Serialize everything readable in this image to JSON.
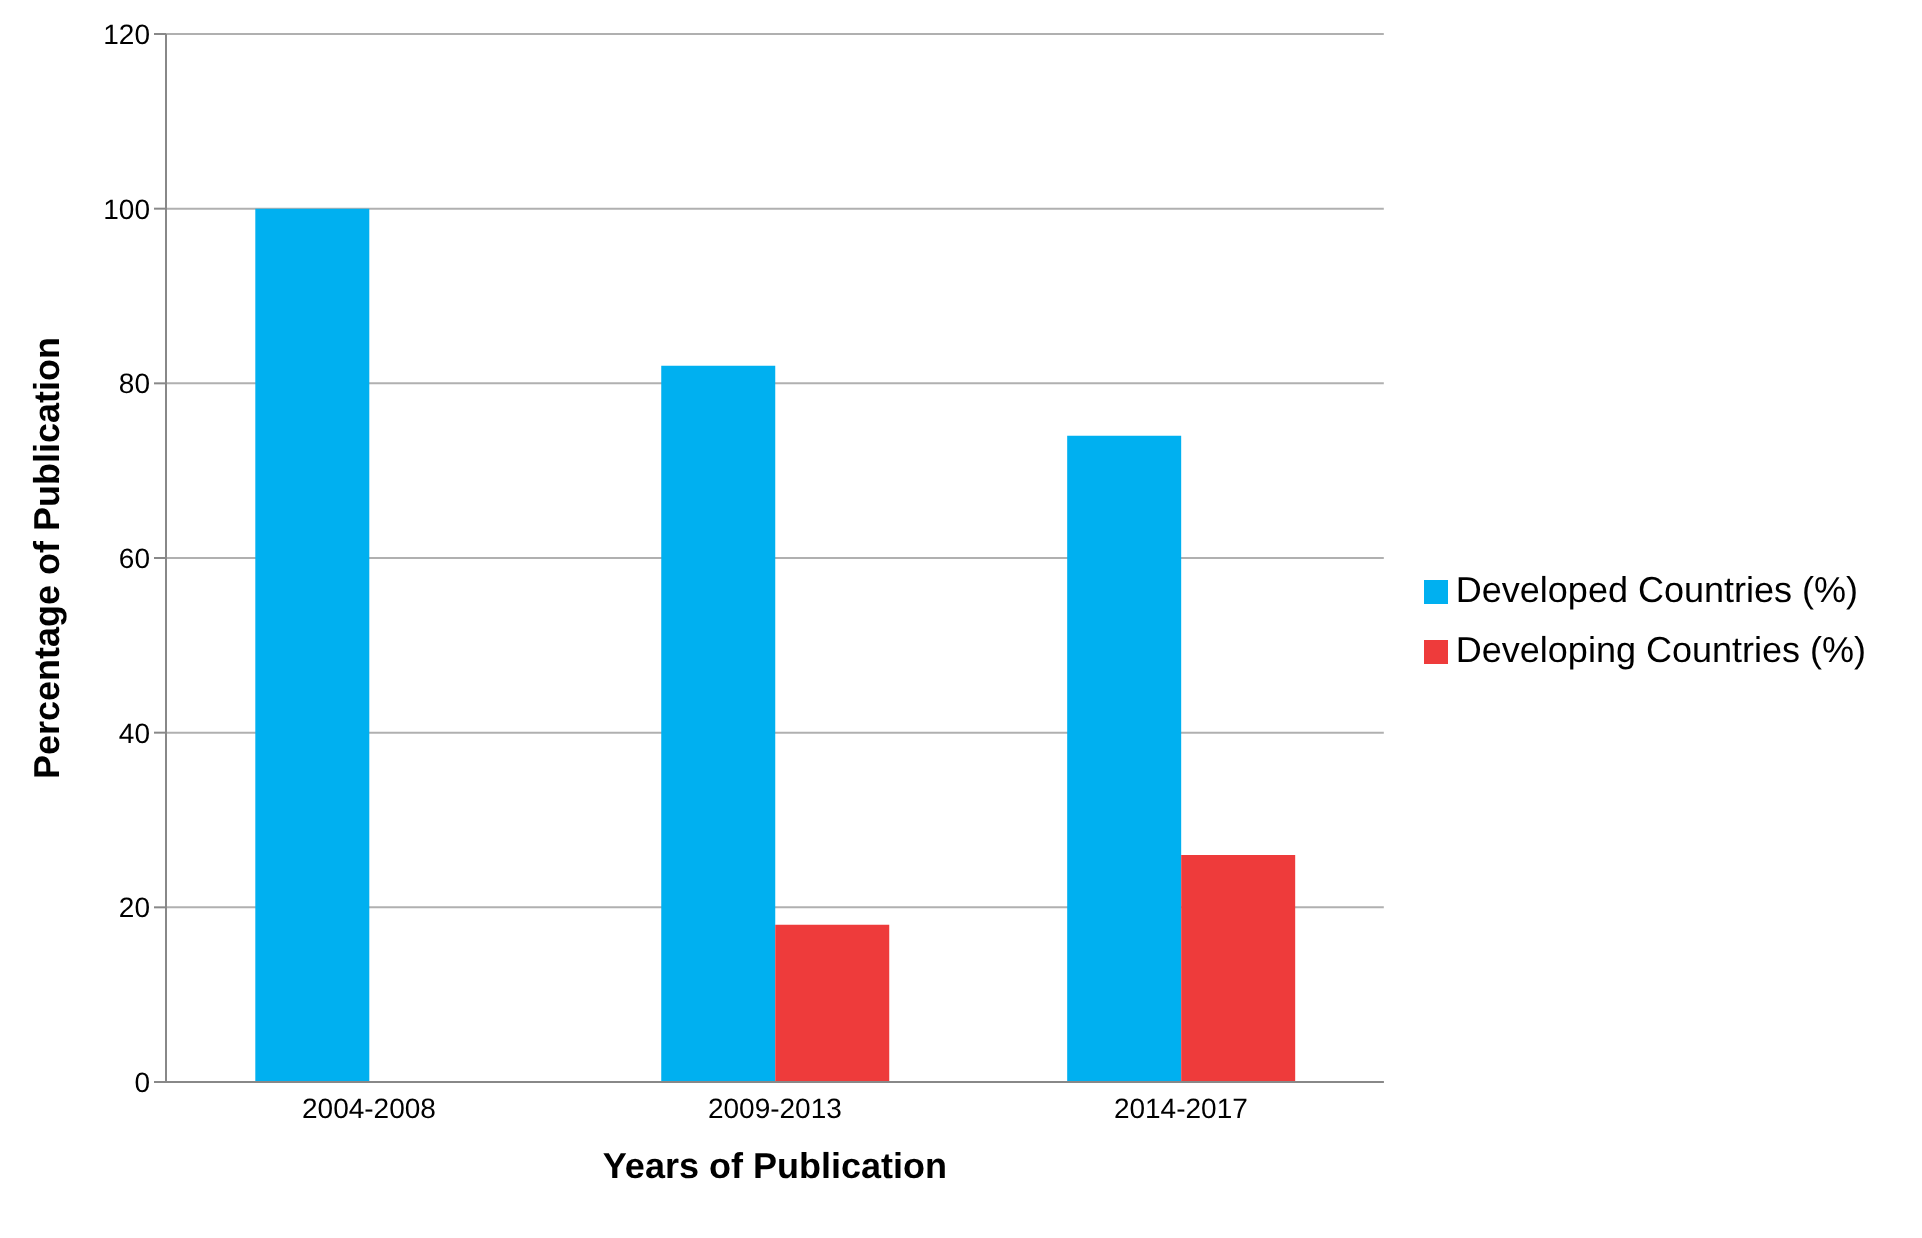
{
  "chart_data": {
    "type": "bar",
    "xlabel": "Years of Publication",
    "ylabel": "Percentage of Publication",
    "categories": [
      "2004-2008",
      "2009-2013",
      "2014-2017"
    ],
    "series": [
      {
        "name": "Developed Countries (%)",
        "color": "#00b0f0",
        "values": [
          100,
          82,
          74
        ]
      },
      {
        "name": "Developing Countries (%)",
        "color": "#ee3b3b",
        "values": [
          0,
          18,
          26
        ]
      }
    ],
    "ylim": [
      0,
      120
    ],
    "yticks": [
      0,
      20,
      40,
      60,
      80,
      100,
      120
    ],
    "grid": "y",
    "legend": "right"
  }
}
